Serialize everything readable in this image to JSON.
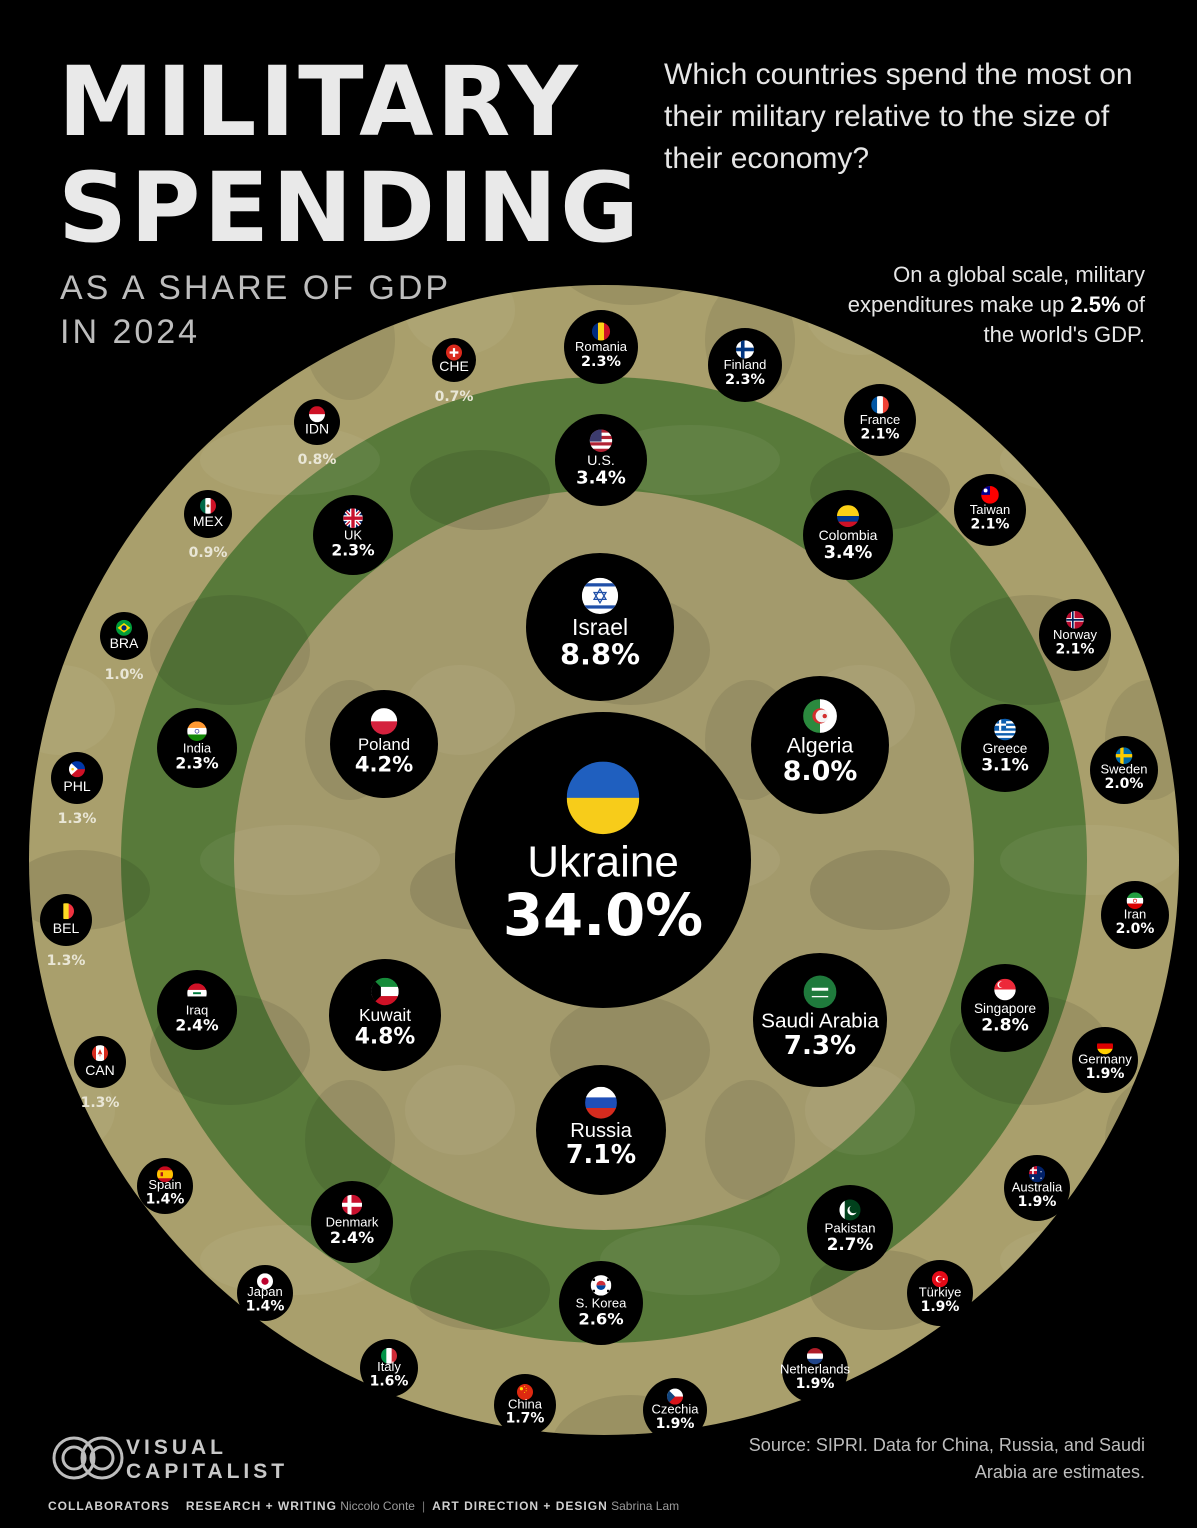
{
  "header": {
    "title_line1": "MILITARY",
    "title_line2": "SPENDING",
    "subtitle": "AS A SHARE OF GDP\nIN 2024",
    "question": "Which countries spend the most on their military relative to the size of their economy?",
    "global_note_pre": "On a global scale, military expenditures make up ",
    "global_note_value": "2.5%",
    "global_note_post": " of the world's GDP."
  },
  "colors": {
    "background": "#000000",
    "outer_ring": "#a99f6c",
    "middle_ring": "#587a3a",
    "inner_disc": "#a39a6c",
    "bubble": "#000000",
    "text": "#ffffff"
  },
  "chart_data": {
    "type": "bubble",
    "unit": "% of GDP",
    "items": [
      {
        "name": "Ukraine",
        "value": 34.0,
        "label": "34.0%",
        "ring": "center",
        "flag": "ukraine"
      },
      {
        "name": "Israel",
        "value": 8.8,
        "label": "8.8%",
        "ring": "inner",
        "flag": "israel"
      },
      {
        "name": "Algeria",
        "value": 8.0,
        "label": "8.0%",
        "ring": "inner",
        "flag": "algeria"
      },
      {
        "name": "Saudi Arabia",
        "value": 7.3,
        "label": "7.3%",
        "ring": "inner",
        "flag": "saudi"
      },
      {
        "name": "Russia",
        "value": 7.1,
        "label": "7.1%",
        "ring": "inner",
        "flag": "russia"
      },
      {
        "name": "Kuwait",
        "value": 4.8,
        "label": "4.8%",
        "ring": "inner",
        "flag": "kuwait"
      },
      {
        "name": "Poland",
        "value": 4.2,
        "label": "4.2%",
        "ring": "inner",
        "flag": "poland"
      },
      {
        "name": "U.S.",
        "value": 3.4,
        "label": "3.4%",
        "ring": "middle",
        "flag": "us"
      },
      {
        "name": "Colombia",
        "value": 3.4,
        "label": "3.4%",
        "ring": "middle",
        "flag": "colombia"
      },
      {
        "name": "Greece",
        "value": 3.1,
        "label": "3.1%",
        "ring": "middle",
        "flag": "greece"
      },
      {
        "name": "Singapore",
        "value": 2.8,
        "label": "2.8%",
        "ring": "middle",
        "flag": "singapore"
      },
      {
        "name": "Pakistan",
        "value": 2.7,
        "label": "2.7%",
        "ring": "middle",
        "flag": "pakistan"
      },
      {
        "name": "S. Korea",
        "value": 2.6,
        "label": "2.6%",
        "ring": "middle",
        "flag": "skorea"
      },
      {
        "name": "Denmark",
        "value": 2.4,
        "label": "2.4%",
        "ring": "middle",
        "flag": "denmark"
      },
      {
        "name": "Iraq",
        "value": 2.4,
        "label": "2.4%",
        "ring": "middle",
        "flag": "iraq"
      },
      {
        "name": "India",
        "value": 2.3,
        "label": "2.3%",
        "ring": "middle",
        "flag": "india"
      },
      {
        "name": "UK",
        "value": 2.3,
        "label": "2.3%",
        "ring": "middle",
        "flag": "uk"
      },
      {
        "name": "Romania",
        "value": 2.3,
        "label": "2.3%",
        "ring": "outer",
        "flag": "romania"
      },
      {
        "name": "Finland",
        "value": 2.3,
        "label": "2.3%",
        "ring": "outer",
        "flag": "finland"
      },
      {
        "name": "France",
        "value": 2.1,
        "label": "2.1%",
        "ring": "outer",
        "flag": "france"
      },
      {
        "name": "Taiwan",
        "value": 2.1,
        "label": "2.1%",
        "ring": "outer",
        "flag": "taiwan"
      },
      {
        "name": "Norway",
        "value": 2.1,
        "label": "2.1%",
        "ring": "outer",
        "flag": "norway"
      },
      {
        "name": "Sweden",
        "value": 2.0,
        "label": "2.0%",
        "ring": "outer",
        "flag": "sweden"
      },
      {
        "name": "Iran",
        "value": 2.0,
        "label": "2.0%",
        "ring": "outer",
        "flag": "iran"
      },
      {
        "name": "Germany",
        "value": 1.9,
        "label": "1.9%",
        "ring": "outer",
        "flag": "germany"
      },
      {
        "name": "Australia",
        "value": 1.9,
        "label": "1.9%",
        "ring": "outer",
        "flag": "australia"
      },
      {
        "name": "Türkiye",
        "value": 1.9,
        "label": "1.9%",
        "ring": "outer",
        "flag": "turkiye"
      },
      {
        "name": "Netherlands",
        "value": 1.9,
        "label": "1.9%",
        "ring": "outer",
        "flag": "netherlands"
      },
      {
        "name": "Czechia",
        "value": 1.9,
        "label": "1.9%",
        "ring": "outer",
        "flag": "czechia"
      },
      {
        "name": "China",
        "value": 1.7,
        "label": "1.7%",
        "ring": "outer",
        "flag": "china"
      },
      {
        "name": "Italy",
        "value": 1.6,
        "label": "1.6%",
        "ring": "outer",
        "flag": "italy"
      },
      {
        "name": "Japan",
        "value": 1.4,
        "label": "1.4%",
        "ring": "outer",
        "flag": "japan"
      },
      {
        "name": "Spain",
        "value": 1.4,
        "label": "1.4%",
        "ring": "outer",
        "flag": "spain"
      },
      {
        "name": "CAN",
        "value": 1.3,
        "label": "1.3%",
        "ring": "outer",
        "flag": "canada"
      },
      {
        "name": "BEL",
        "value": 1.3,
        "label": "1.3%",
        "ring": "outer",
        "flag": "belgium"
      },
      {
        "name": "PHL",
        "value": 1.3,
        "label": "1.3%",
        "ring": "outer",
        "flag": "philippines"
      },
      {
        "name": "BRA",
        "value": 1.0,
        "label": "1.0%",
        "ring": "outer",
        "flag": "brazil"
      },
      {
        "name": "MEX",
        "value": 0.9,
        "label": "0.9%",
        "ring": "outer",
        "flag": "mexico"
      },
      {
        "name": "IDN",
        "value": 0.8,
        "label": "0.8%",
        "ring": "outer",
        "flag": "indonesia"
      },
      {
        "name": "CHE",
        "value": 0.7,
        "label": "0.7%",
        "ring": "outer",
        "flag": "switzerland"
      }
    ]
  },
  "footer": {
    "source": "Source: SIPRI. Data for China, Russia, and Saudi Arabia are estimates.",
    "logo_text": "VISUAL\nCAPITALIST",
    "collaborators_label": "COLLABORATORS",
    "research_label": "RESEARCH + WRITING",
    "research_name": "Niccolo Conte",
    "design_label": "ART DIRECTION + DESIGN",
    "design_name": "Sabrina Lam"
  }
}
